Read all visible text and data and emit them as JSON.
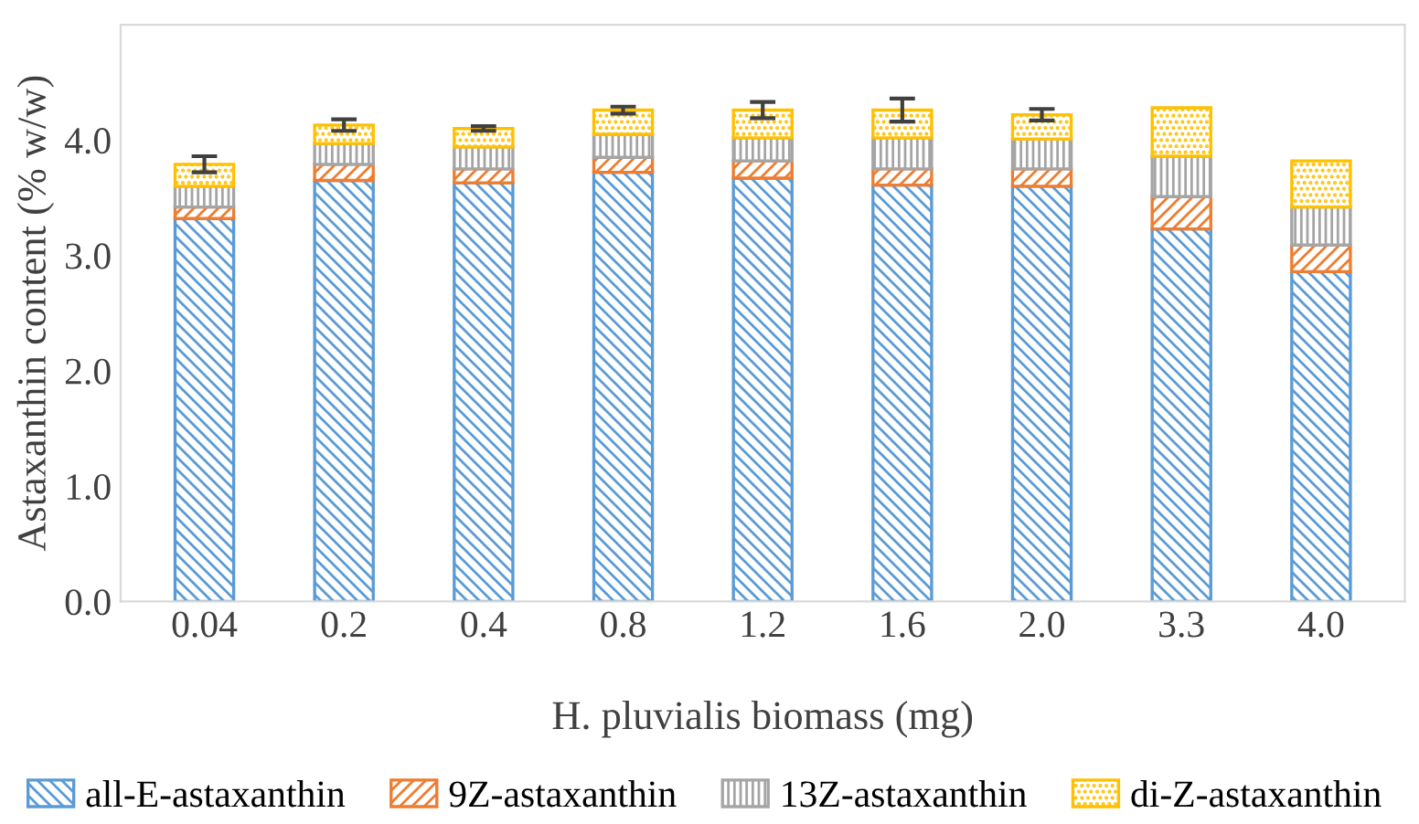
{
  "chart_data": {
    "type": "bar",
    "stacked": true,
    "categories": [
      "0.04",
      "0.2",
      "0.4",
      "0.8",
      "1.2",
      "1.6",
      "2.0",
      "3.3",
      "4.0"
    ],
    "series": [
      {
        "name": "all-E-astaxanthin",
        "color": "#5b9bd5",
        "values": [
          3.32,
          3.65,
          3.63,
          3.72,
          3.67,
          3.61,
          3.6,
          3.23,
          2.86
        ]
      },
      {
        "name": "9Z-astaxanthin",
        "color": "#ed7d31",
        "values": [
          0.1,
          0.14,
          0.12,
          0.13,
          0.15,
          0.14,
          0.15,
          0.28,
          0.23
        ]
      },
      {
        "name": "13Z-astaxanthin",
        "color": "#a5a5a5",
        "values": [
          0.18,
          0.18,
          0.19,
          0.2,
          0.2,
          0.27,
          0.26,
          0.35,
          0.33
        ]
      },
      {
        "name": "di-Z-astaxanthin",
        "color": "#ffc000",
        "values": [
          0.19,
          0.16,
          0.16,
          0.21,
          0.24,
          0.24,
          0.21,
          0.42,
          0.4
        ],
        "errors": [
          0.07,
          0.05,
          0.02,
          0.03,
          0.07,
          0.1,
          0.05,
          null,
          null
        ]
      }
    ],
    "xlabel": "H. pluvialis biomass (mg)",
    "ylabel": "Astaxanthin content (% w/w)",
    "ylim": [
      0,
      5
    ],
    "yticks": [
      {
        "value": 0,
        "label": "0.0"
      },
      {
        "value": 1,
        "label": "1.0"
      },
      {
        "value": 2,
        "label": "2.0"
      },
      {
        "value": 3,
        "label": "3.0"
      },
      {
        "value": 4,
        "label": "4.0"
      },
      {
        "value": 5,
        "label": null
      }
    ],
    "grid": false,
    "legend": "bottom"
  }
}
